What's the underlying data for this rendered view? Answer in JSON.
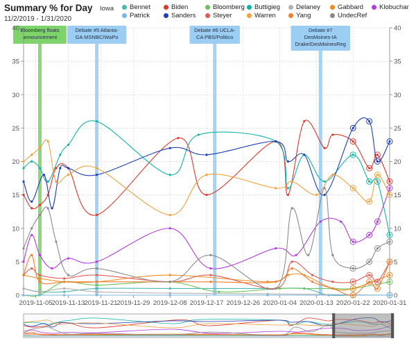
{
  "title": "Summary % for Day",
  "date_range": "11/2/2019 - 1/31/2020",
  "region": "Iowa",
  "chart_data": {
    "type": "line",
    "x_axis": {
      "ticks": [
        "2019-11-05",
        "2019-11-13",
        "2019-11-21",
        "2019-11-29",
        "2019-12-08",
        "2019-12-17",
        "2019-12-26",
        "2020-01-04",
        "2020-01-13",
        "2020-01-22",
        "2020-01-31"
      ],
      "range": [
        "2019-11-02",
        "2020-01-31"
      ]
    },
    "y_axis": {
      "range": [
        0,
        40
      ],
      "ticks": [
        0,
        5,
        10,
        15,
        20,
        25,
        30,
        35,
        40
      ],
      "mirror_right": true
    },
    "grid": true,
    "legend_position": "top",
    "events": [
      {
        "date": "2019-11-06",
        "label": [
          "Bloomberg floats",
          "announcement"
        ],
        "color": "#7ed36a"
      },
      {
        "date": "2019-11-20",
        "label": [
          "Debate #5 Atlanta-",
          "GA MSNBC/WaPo"
        ],
        "color": "#9ccdf3"
      },
      {
        "date": "2019-12-19",
        "label": [
          "Debate #6 UCLA-",
          "CA PBS/Politico"
        ],
        "color": "#9ccdf3"
      },
      {
        "date": "2020-01-14",
        "label": [
          "Debate #7",
          "DesMoines-IA",
          "Drake/DesMoinesReg"
        ],
        "color": "#9ccdf3"
      }
    ],
    "series": [
      {
        "name": "Bennet",
        "color": "#4bb8b0",
        "points": [
          [
            "2019-11-02",
            1
          ],
          [
            "2019-11-06",
            0.5
          ],
          [
            "2019-11-12",
            0.5
          ],
          [
            "2019-11-20",
            1
          ],
          [
            "2019-12-08",
            1
          ],
          [
            "2020-01-01",
            1
          ],
          [
            "2020-01-10",
            1
          ],
          [
            "2020-01-16",
            0
          ],
          [
            "2020-01-22",
            0
          ],
          [
            "2020-01-31",
            0
          ]
        ]
      },
      {
        "name": "Biden",
        "color": "#e0362c",
        "points": [
          [
            "2019-11-02",
            15
          ],
          [
            "2019-11-04",
            13
          ],
          [
            "2019-11-06",
            13.5
          ],
          [
            "2019-11-08",
            15
          ],
          [
            "2019-11-10",
            19
          ],
          [
            "2019-11-13",
            19
          ],
          [
            "2019-11-20",
            12
          ],
          [
            "2019-12-10",
            23.5
          ],
          [
            "2019-12-17",
            15
          ],
          [
            "2020-01-03",
            23
          ],
          [
            "2020-01-06",
            15
          ],
          [
            "2020-01-10",
            26
          ],
          [
            "2020-01-15",
            22
          ],
          [
            "2020-01-17",
            24
          ],
          [
            "2020-01-22",
            23
          ],
          [
            "2020-01-26",
            19
          ],
          [
            "2020-01-28",
            21
          ],
          [
            "2020-01-31",
            17
          ]
        ]
      },
      {
        "name": "Bloomberg",
        "color": "#6cc35d",
        "points": [
          [
            "2019-11-02",
            0
          ],
          [
            "2019-11-06",
            0
          ],
          [
            "2019-11-12",
            2
          ],
          [
            "2019-11-20",
            1.5
          ],
          [
            "2019-12-08",
            2
          ],
          [
            "2019-12-20",
            0.5
          ],
          [
            "2020-01-04",
            1
          ],
          [
            "2020-01-10",
            1
          ],
          [
            "2020-01-17",
            1
          ],
          [
            "2020-01-22",
            1
          ],
          [
            "2020-01-31",
            2
          ]
        ]
      },
      {
        "name": "Buttigieg",
        "color": "#11b5a6",
        "points": [
          [
            "2019-11-02",
            19
          ],
          [
            "2019-11-04",
            20
          ],
          [
            "2019-11-06",
            19
          ],
          [
            "2019-11-08",
            17
          ],
          [
            "2019-11-11",
            21
          ],
          [
            "2019-11-13",
            22.5
          ],
          [
            "2019-11-20",
            26
          ],
          [
            "2019-12-08",
            18
          ],
          [
            "2019-12-15",
            24
          ],
          [
            "2020-01-03",
            23
          ],
          [
            "2020-01-06",
            16
          ],
          [
            "2020-01-10",
            21
          ],
          [
            "2020-01-15",
            17
          ],
          [
            "2020-01-22",
            21
          ],
          [
            "2020-01-26",
            17
          ],
          [
            "2020-01-28",
            17
          ],
          [
            "2020-01-31",
            9
          ]
        ]
      },
      {
        "name": "Delaney",
        "color": "#b0b0b0",
        "points": [
          [
            "2019-11-02",
            1
          ],
          [
            "2019-11-06",
            0.5
          ],
          [
            "2019-11-12",
            1
          ],
          [
            "2019-11-20",
            0.5
          ],
          [
            "2019-12-08",
            0.3
          ],
          [
            "2020-01-01",
            0.2
          ],
          [
            "2020-01-31",
            0
          ]
        ]
      },
      {
        "name": "Gabbard",
        "color": "#f28a1f",
        "points": [
          [
            "2019-11-02",
            3
          ],
          [
            "2019-11-06",
            2.5
          ],
          [
            "2019-11-12",
            2
          ],
          [
            "2019-11-20",
            2
          ],
          [
            "2019-12-08",
            3
          ],
          [
            "2020-01-01",
            2
          ],
          [
            "2020-01-06",
            3
          ],
          [
            "2020-01-10",
            3
          ],
          [
            "2020-01-17",
            1
          ],
          [
            "2020-01-22",
            1
          ],
          [
            "2020-01-31",
            3
          ]
        ]
      },
      {
        "name": "Klobuchar",
        "color": "#b33ce0",
        "points": [
          [
            "2019-11-02",
            5
          ],
          [
            "2019-11-04",
            9
          ],
          [
            "2019-11-06",
            6
          ],
          [
            "2019-11-09",
            4
          ],
          [
            "2019-11-13",
            5.5
          ],
          [
            "2019-11-20",
            5
          ],
          [
            "2019-12-08",
            10
          ],
          [
            "2019-12-18",
            4
          ],
          [
            "2020-01-03",
            7
          ],
          [
            "2020-01-08",
            6
          ],
          [
            "2020-01-14",
            11
          ],
          [
            "2020-01-19",
            11
          ],
          [
            "2020-01-22",
            8
          ],
          [
            "2020-01-26",
            9
          ],
          [
            "2020-01-28",
            11
          ],
          [
            "2020-01-31",
            16
          ]
        ]
      },
      {
        "name": "Patrick",
        "color": "#79b7e0",
        "points": [
          [
            "2019-11-02",
            0
          ],
          [
            "2019-11-06",
            0
          ],
          [
            "2019-11-12",
            0
          ],
          [
            "2019-11-20",
            0
          ],
          [
            "2019-12-08",
            0
          ],
          [
            "2020-01-01",
            0
          ],
          [
            "2020-01-31",
            0
          ]
        ]
      },
      {
        "name": "Sanders",
        "color": "#1e3fb8",
        "points": [
          [
            "2019-11-02",
            17
          ],
          [
            "2019-11-04",
            14
          ],
          [
            "2019-11-07",
            18
          ],
          [
            "2019-11-09",
            13
          ],
          [
            "2019-11-11",
            19
          ],
          [
            "2019-11-13",
            19
          ],
          [
            "2019-11-20",
            18
          ],
          [
            "2019-12-08",
            22
          ],
          [
            "2019-12-17",
            21
          ],
          [
            "2020-01-03",
            23
          ],
          [
            "2020-01-06",
            20
          ],
          [
            "2020-01-10",
            21
          ],
          [
            "2020-01-15",
            15
          ],
          [
            "2020-01-22",
            25
          ],
          [
            "2020-01-26",
            26
          ],
          [
            "2020-01-28",
            20
          ],
          [
            "2020-01-31",
            23
          ]
        ]
      },
      {
        "name": "Steyer",
        "color": "#e05d55",
        "points": [
          [
            "2019-11-02",
            3
          ],
          [
            "2019-11-04",
            4
          ],
          [
            "2019-11-06",
            3
          ],
          [
            "2019-11-12",
            2.5
          ],
          [
            "2019-11-20",
            3
          ],
          [
            "2019-12-08",
            2
          ],
          [
            "2019-12-18",
            3
          ],
          [
            "2020-01-03",
            1
          ],
          [
            "2020-01-07",
            5
          ],
          [
            "2020-01-12",
            3
          ],
          [
            "2020-01-17",
            2
          ],
          [
            "2020-01-22",
            2
          ],
          [
            "2020-01-26",
            3
          ],
          [
            "2020-01-28",
            2
          ],
          [
            "2020-01-31",
            5
          ]
        ]
      },
      {
        "name": "Warren",
        "color": "#f0a23e",
        "points": [
          [
            "2019-11-02",
            20
          ],
          [
            "2019-11-04",
            21
          ],
          [
            "2019-11-06",
            22
          ],
          [
            "2019-11-08",
            23
          ],
          [
            "2019-11-10",
            17
          ],
          [
            "2019-11-13",
            18
          ],
          [
            "2019-11-20",
            19
          ],
          [
            "2019-12-08",
            12
          ],
          [
            "2019-12-17",
            18
          ],
          [
            "2020-01-03",
            16
          ],
          [
            "2020-01-07",
            17
          ],
          [
            "2020-01-13",
            15
          ],
          [
            "2020-01-17",
            18
          ],
          [
            "2020-01-22",
            16
          ],
          [
            "2020-01-26",
            14
          ],
          [
            "2020-01-28",
            18
          ],
          [
            "2020-01-31",
            15
          ]
        ]
      },
      {
        "name": "Yang",
        "color": "#f07f2e",
        "points": [
          [
            "2019-11-02",
            3
          ],
          [
            "2019-11-04",
            6
          ],
          [
            "2019-11-06",
            2
          ],
          [
            "2019-11-12",
            2
          ],
          [
            "2019-11-20",
            2
          ],
          [
            "2019-12-08",
            2
          ],
          [
            "2019-12-18",
            2
          ],
          [
            "2020-01-03",
            2
          ],
          [
            "2020-01-07",
            4
          ],
          [
            "2020-01-12",
            2
          ],
          [
            "2020-01-17",
            1
          ],
          [
            "2020-01-22",
            0
          ],
          [
            "2020-01-26",
            2
          ],
          [
            "2020-01-28",
            1
          ],
          [
            "2020-01-31",
            5
          ]
        ]
      },
      {
        "name": "UndecRef",
        "color": "#8a8a8a",
        "points": [
          [
            "2019-11-02",
            7
          ],
          [
            "2019-11-04",
            10
          ],
          [
            "2019-11-06",
            12
          ],
          [
            "2019-11-08",
            13
          ],
          [
            "2019-11-10",
            8
          ],
          [
            "2019-11-13",
            3
          ],
          [
            "2019-11-20",
            4
          ],
          [
            "2019-12-08",
            2
          ],
          [
            "2019-12-18",
            6
          ],
          [
            "2020-01-03",
            1
          ],
          [
            "2020-01-07",
            13
          ],
          [
            "2020-01-11",
            6
          ],
          [
            "2020-01-15",
            16
          ],
          [
            "2020-01-17",
            6
          ],
          [
            "2020-01-22",
            4
          ],
          [
            "2020-01-26",
            5
          ],
          [
            "2020-01-28",
            7
          ],
          [
            "2020-01-31",
            8
          ]
        ]
      }
    ]
  }
}
